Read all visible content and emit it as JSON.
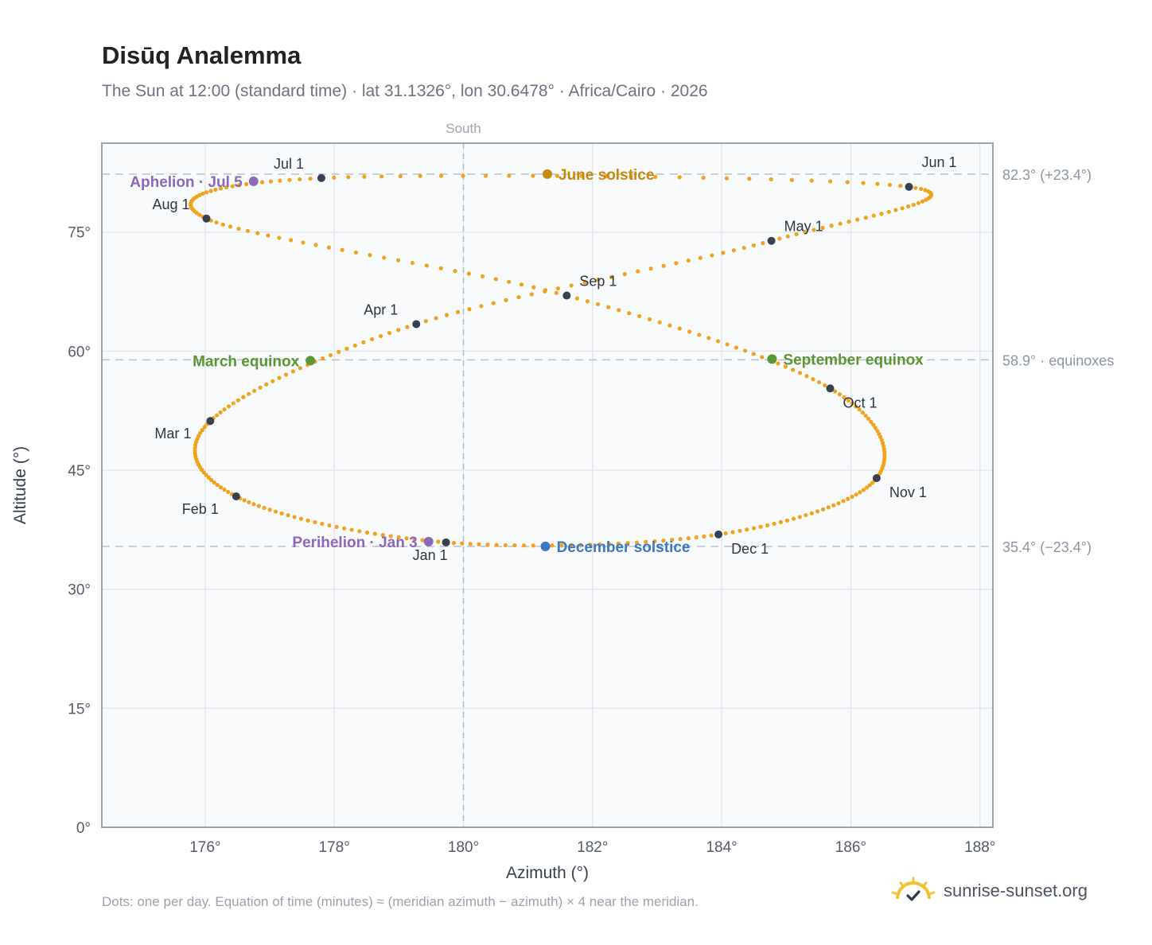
{
  "header": {
    "title": "Disūq Analemma",
    "subtitle": "The Sun at 12:00 (standard time) · lat 31.1326°, lon 30.6478° · Africa/Cairo · 2026"
  },
  "footer": {
    "note": "Dots: one per day. Equation of time (minutes) ≈ (meridian azimuth − azimuth) × 4 near the meridian.",
    "brand": "sunrise-sunset.org"
  },
  "chart_data": {
    "type": "scatter",
    "xlabel": "Azimuth (°)",
    "ylabel": "Altitude (°)",
    "xlim": [
      174.4,
      188.2
    ],
    "ylim": [
      0,
      86.2
    ],
    "x_ticks": [
      176,
      178,
      180,
      182,
      184,
      186,
      188
    ],
    "x_tick_labels": [
      "176°",
      "178°",
      "180°",
      "182°",
      "184°",
      "186°",
      "188°"
    ],
    "y_ticks": [
      0,
      15,
      30,
      45,
      60,
      75
    ],
    "y_tick_labels": [
      "0°",
      "15°",
      "30°",
      "45°",
      "60°",
      "75°"
    ],
    "grid": true,
    "meridian": {
      "x": 180,
      "label": "South"
    },
    "reference_lines": [
      {
        "y": 82.3,
        "label": "82.3° (+23.4°)"
      },
      {
        "y": 58.9,
        "label": "58.9° · equinoxes"
      },
      {
        "y": 35.4,
        "label": "35.4° (−23.4°)"
      }
    ],
    "months": [
      {
        "label": "Jan 1",
        "x": 179.73,
        "y": 35.9
      },
      {
        "label": "Feb 1",
        "x": 176.48,
        "y": 41.7
      },
      {
        "label": "Mar 1",
        "x": 176.08,
        "y": 51.2
      },
      {
        "label": "Apr 1",
        "x": 179.27,
        "y": 63.4
      },
      {
        "label": "May 1",
        "x": 184.77,
        "y": 73.9
      },
      {
        "label": "Jun 1",
        "x": 186.9,
        "y": 80.7
      },
      {
        "label": "Jul 1",
        "x": 177.8,
        "y": 81.8
      },
      {
        "label": "Aug 1",
        "x": 176.02,
        "y": 76.7
      },
      {
        "label": "Sep 1",
        "x": 181.6,
        "y": 67.0
      },
      {
        "label": "Oct 1",
        "x": 185.68,
        "y": 55.3
      },
      {
        "label": "Nov 1",
        "x": 186.4,
        "y": 44.0
      },
      {
        "label": "Dec 1",
        "x": 183.95,
        "y": 36.9
      }
    ],
    "events": [
      {
        "label": "June solstice",
        "x": 181.3,
        "y": 82.3,
        "color": "#c8890a"
      },
      {
        "label": "December solstice",
        "x": 181.27,
        "y": 35.4,
        "color": "#3b78c2"
      },
      {
        "label": "March equinox",
        "x": 177.63,
        "y": 58.8,
        "color": "#5a9632"
      },
      {
        "label": "September equinox",
        "x": 184.78,
        "y": 59.0,
        "color": "#5a9632"
      },
      {
        "label": "Aphelion · Jul 5",
        "x": 176.75,
        "y": 81.4,
        "color": "#8e68b8"
      },
      {
        "label": "Perihelion · Jan 3",
        "x": 179.46,
        "y": 36.0,
        "color": "#8e68b8"
      }
    ],
    "colors": {
      "curve": "#f2a31d",
      "month_marker": "#374151",
      "grid": "#e5e7eb",
      "reference_line": "#b8c2cc",
      "plot_background": "#f8fafc",
      "axis": "#9aa5b1"
    }
  }
}
